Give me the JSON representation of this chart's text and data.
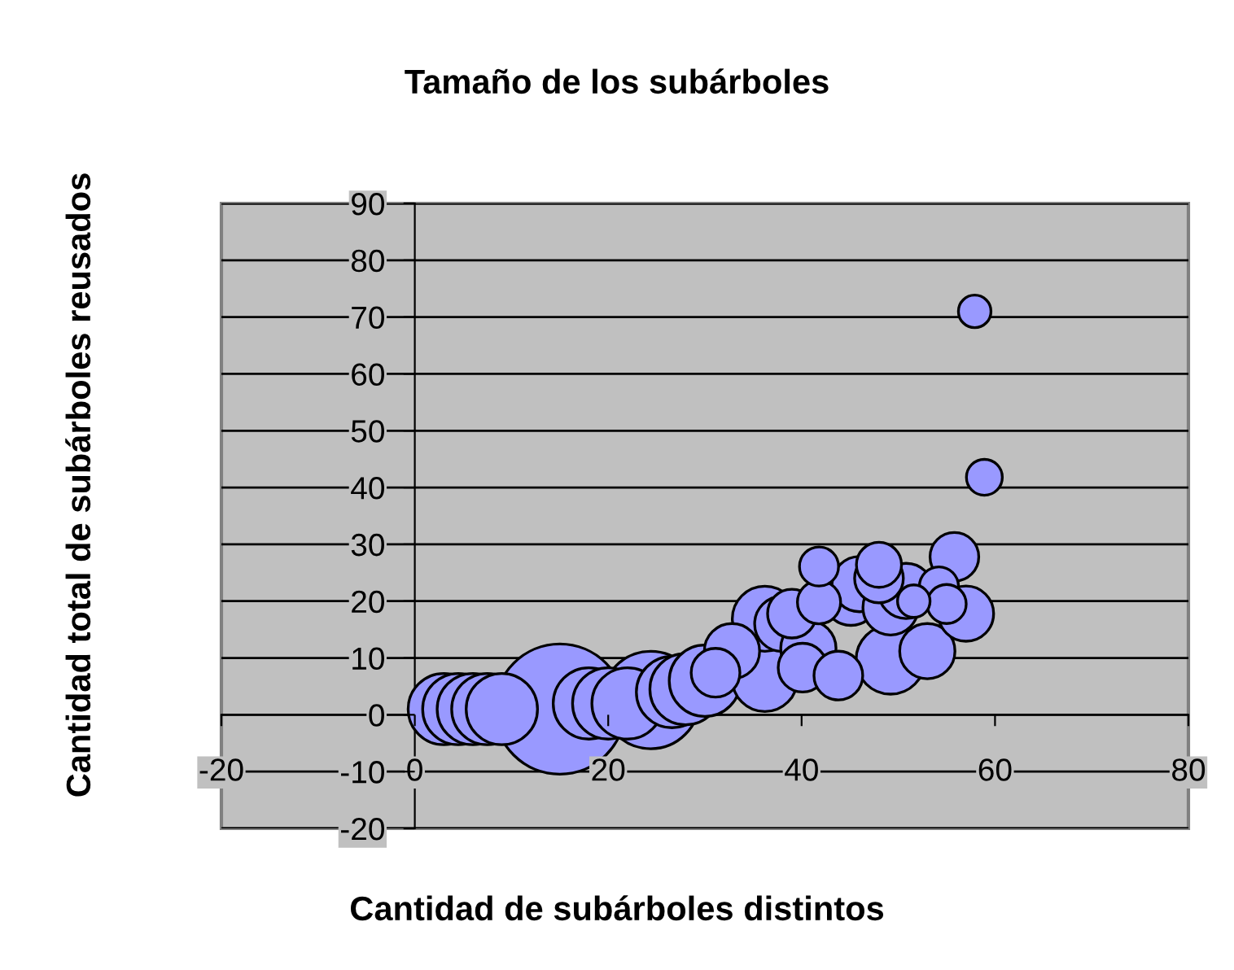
{
  "chart_data": {
    "type": "bubble",
    "title": "Tamaño de los subárboles",
    "xlabel": "Cantidad de subárboles distintos",
    "ylabel": "Cantidad total de subárboles reusados",
    "xlim": [
      -20,
      80
    ],
    "xticks": [
      -20,
      0,
      20,
      40,
      60,
      80
    ],
    "ylim": [
      -20,
      90
    ],
    "yticks": [
      -20,
      -10,
      0,
      10,
      20,
      30,
      40,
      50,
      60,
      70,
      80,
      90
    ],
    "grid": "y",
    "legend": false,
    "series": [
      {
        "color": "#9999ff",
        "x": [
          3,
          4.5,
          6,
          7.5,
          9,
          15,
          18,
          20,
          22,
          24.4,
          26.6,
          28,
          30,
          31.1,
          32.8,
          36.2,
          36.2,
          38,
          39,
          40.1,
          40.7,
          41.8,
          41.8,
          43.8,
          45.1,
          46,
          48,
          48,
          49.2,
          49.2,
          50.8,
          51.6,
          53,
          54.2,
          55,
          55.8,
          57,
          57.9,
          58.9
        ],
        "values": [
          1,
          1,
          1,
          1,
          1,
          1,
          2,
          2,
          2,
          2.6,
          4,
          4.5,
          6,
          7.4,
          11.2,
          6.3,
          16.9,
          16,
          17.8,
          8.3,
          11.7,
          26.1,
          19.8,
          6.9,
          20.6,
          23,
          26.4,
          24,
          9.7,
          18.9,
          21.8,
          20,
          11.2,
          22.6,
          19.5,
          27.8,
          17.8,
          71,
          41.8
        ],
        "sizes": [
          0.3,
          0.3,
          0.3,
          0.3,
          0.3,
          1,
          0.3,
          0.3,
          0.3,
          0.56,
          0.3,
          0.3,
          0.3,
          0.14,
          0.18,
          0.25,
          0.25,
          0.18,
          0.14,
          0.14,
          0.18,
          0.09,
          0.11,
          0.14,
          0.18,
          0.18,
          0.12,
          0.14,
          0.28,
          0.18,
          0.18,
          0.0625,
          0.18,
          0.09,
          0.09,
          0.14,
          0.18,
          0.0625,
          0.076
        ]
      }
    ]
  }
}
